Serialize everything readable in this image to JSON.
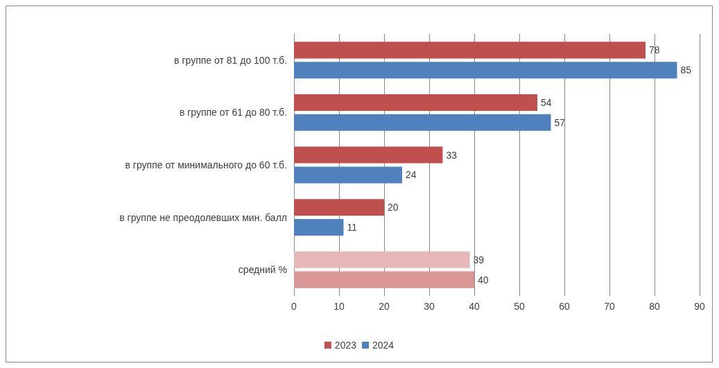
{
  "chart_data": {
    "type": "bar",
    "orientation": "horizontal",
    "categories": [
      "в группе от 81 до 100 т.б.",
      "в группе от 61 до 80 т.б.",
      "в группе от минимального до 60 т.б.",
      "в группе не преодолевших мин. балл",
      "средний %"
    ],
    "series": [
      {
        "name": "2023",
        "color": "#c0504d",
        "colors": [
          "#c0504d",
          "#c0504d",
          "#c0504d",
          "#c0504d",
          "#e6b9b8"
        ],
        "values": [
          78,
          54,
          33,
          20,
          39
        ]
      },
      {
        "name": "2024",
        "color": "#4f81bd",
        "colors": [
          "#4f81bd",
          "#4f81bd",
          "#4f81bd",
          "#4f81bd",
          "#d99694"
        ],
        "values": [
          85,
          57,
          24,
          11,
          40
        ]
      }
    ],
    "xlim": [
      0,
      90
    ],
    "xticks": [
      0,
      10,
      20,
      30,
      40,
      50,
      60,
      70,
      80,
      90
    ],
    "grid": "x",
    "legend": "bottom",
    "data_labels": true
  }
}
